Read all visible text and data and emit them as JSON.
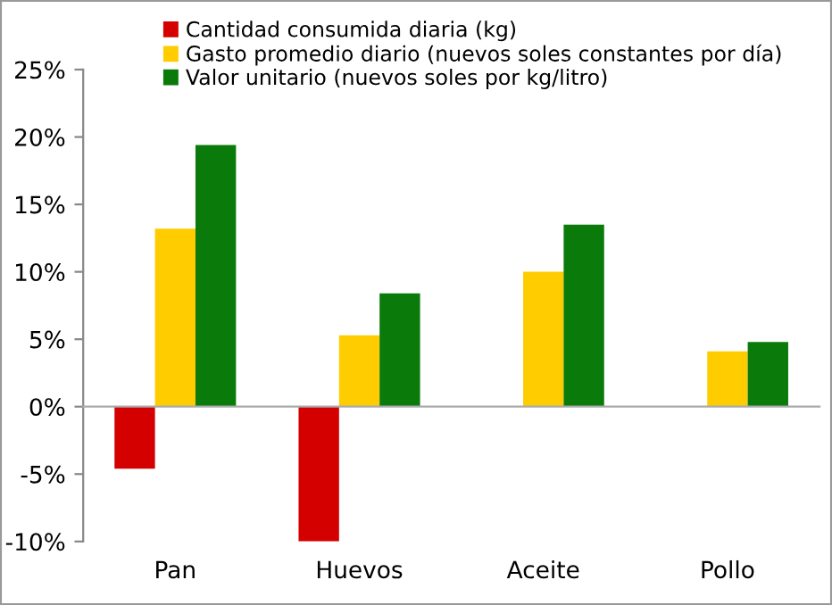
{
  "chart_data": {
    "type": "bar",
    "categories": [
      "Pan",
      "Huevos",
      "Aceite",
      "Pollo"
    ],
    "series": [
      {
        "name": "Cantidad consumida diaria (kg)",
        "color": "#d40000",
        "values": [
          -4.6,
          -10.0,
          null,
          null
        ]
      },
      {
        "name": "Gasto promedio diario (nuevos soles constantes por día)",
        "color": "#ffcc00",
        "values": [
          13.2,
          5.3,
          10.0,
          4.1
        ]
      },
      {
        "name": "Valor unitario (nuevos soles por kg/litro)",
        "color": "#0a7a0a",
        "values": [
          19.4,
          8.4,
          13.5,
          4.8
        ]
      }
    ],
    "ylim": [
      -10,
      25
    ],
    "yticks": [
      {
        "value": -10,
        "label": "-10%"
      },
      {
        "value": -5,
        "label": "-5%"
      },
      {
        "value": 0,
        "label": "0%"
      },
      {
        "value": 5,
        "label": "5%"
      },
      {
        "value": 10,
        "label": "10%"
      },
      {
        "value": 15,
        "label": "15%"
      },
      {
        "value": 20,
        "label": "20%"
      },
      {
        "value": 25,
        "label": "25%"
      }
    ],
    "legend": "top"
  }
}
